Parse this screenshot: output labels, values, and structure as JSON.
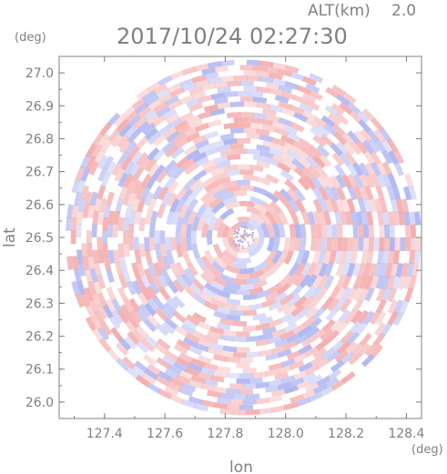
{
  "header": {
    "altitude_label": "ALT(km)",
    "altitude_value": "2.0",
    "timestamp": "2017/10/24 02:27:30"
  },
  "chart_data": {
    "type": "heatmap",
    "title": "2017/10/24 02:27:30",
    "xlabel": "lon",
    "ylabel": "lat",
    "x_unit": "(deg)",
    "y_unit": "(deg)",
    "xlim": [
      127.25,
      128.45
    ],
    "ylim": [
      25.95,
      27.05
    ],
    "x_ticks": [
      "127.4",
      "127.6",
      "127.8",
      "128.0",
      "128.2",
      "128.4"
    ],
    "y_ticks": [
      "27.0",
      "26.9",
      "26.8",
      "26.7",
      "26.6",
      "26.5",
      "26.4",
      "26.3",
      "26.2",
      "26.1",
      "26.0"
    ],
    "domain": {
      "center_lon": 127.86,
      "center_lat": 26.5,
      "shape": "circle",
      "extent_lat": [
        25.97,
        27.05
      ]
    },
    "colors": {
      "positive": "#f4a6a6",
      "negative": "#a8b0f0",
      "zero": "#ffffff",
      "axis": "#808080"
    }
  }
}
